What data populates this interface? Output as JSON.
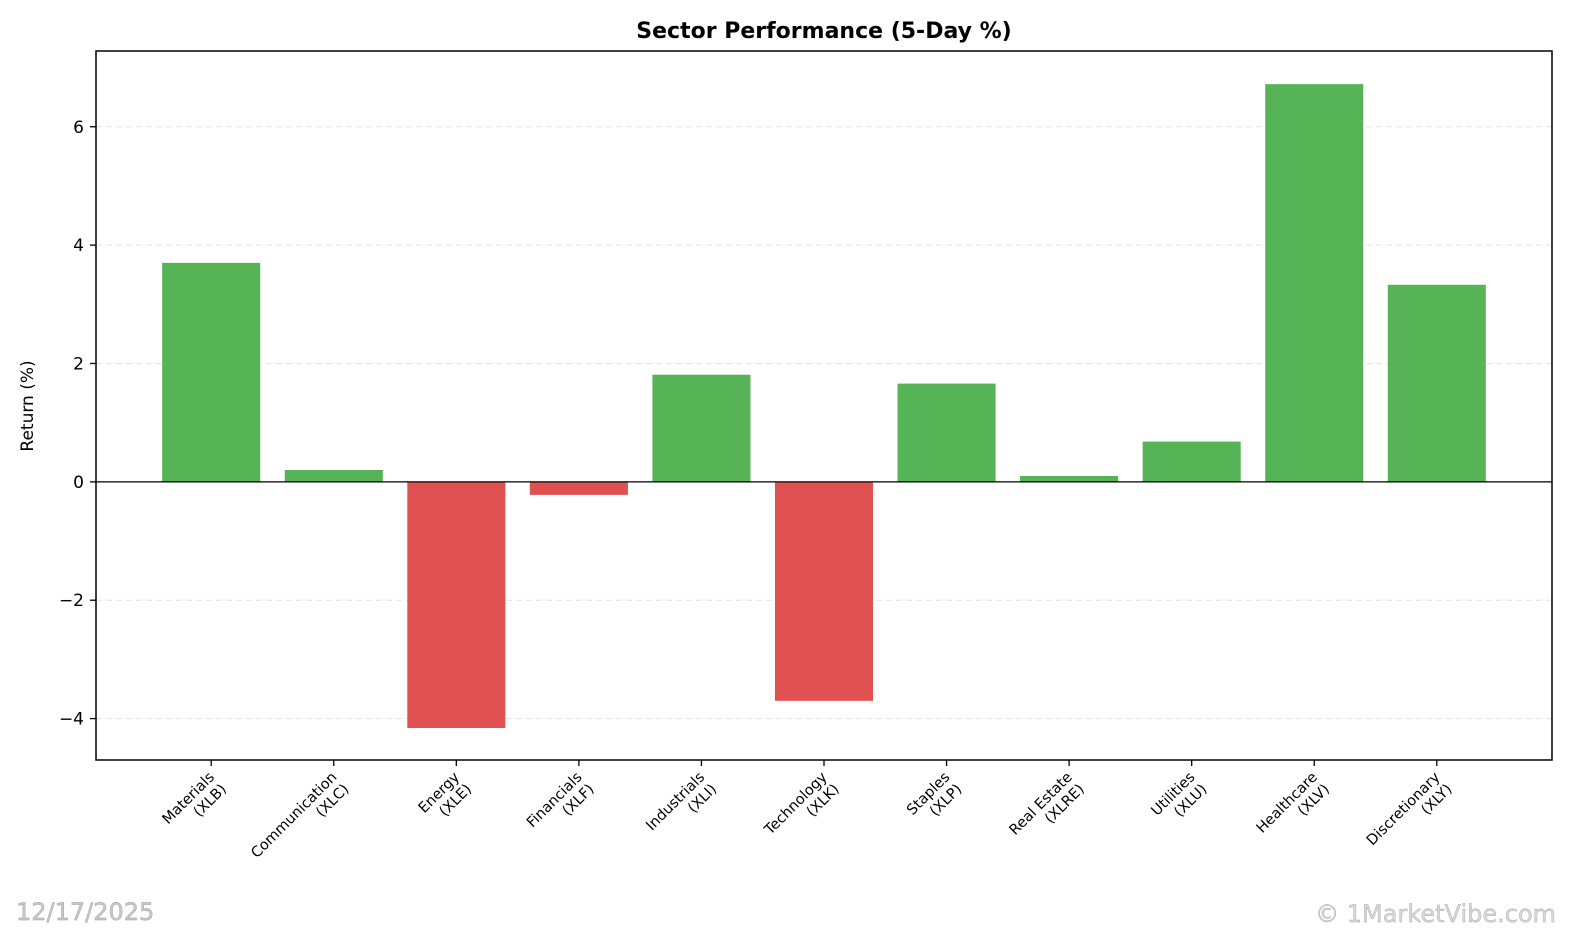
{
  "chart_data": {
    "type": "bar",
    "title": "Sector Performance (5-Day %)",
    "xlabel": "",
    "ylabel": "Return (%)",
    "ylim": [
      -4.7,
      7.28
    ],
    "yticks": [
      -4,
      -2,
      0,
      2,
      4,
      6
    ],
    "ytick_labels": [
      "−4",
      "−2",
      "0",
      "2",
      "4",
      "6"
    ],
    "grid": "horizontal dashed",
    "categories": [
      [
        "Materials",
        "(XLB)"
      ],
      [
        "Communication",
        "(XLC)"
      ],
      [
        "Energy",
        "(XLE)"
      ],
      [
        "Financials",
        "(XLF)"
      ],
      [
        "Industrials",
        "(XLI)"
      ],
      [
        "Technology",
        "(XLK)"
      ],
      [
        "Staples",
        "(XLP)"
      ],
      [
        "Real Estate",
        "(XLRE)"
      ],
      [
        "Utilities",
        "(XLU)"
      ],
      [
        "Healthcare",
        "(XLV)"
      ],
      [
        "Discretionary",
        "(XLY)"
      ]
    ],
    "values": [
      3.7,
      0.2,
      -4.16,
      -0.22,
      1.81,
      -3.7,
      1.66,
      0.1,
      0.68,
      6.72,
      3.33
    ],
    "colors": {
      "positive": "#56b356",
      "negative": "#e05252"
    }
  },
  "footer": {
    "date": "12/17/2025",
    "watermark": "© 1MarketVibe.com"
  }
}
